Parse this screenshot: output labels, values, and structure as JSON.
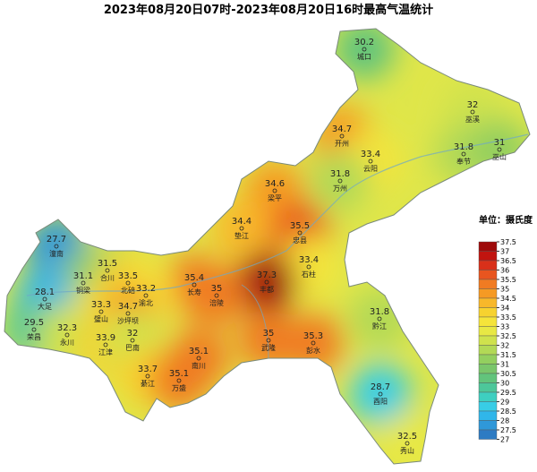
{
  "title": "2023年08月20日07时-2023年08月20日16时最高气温统计",
  "legend": {
    "title": "单位：摄氏度",
    "ticks": [
      37.5,
      37,
      36.5,
      36,
      35.5,
      35,
      34.5,
      34,
      33.5,
      33,
      32.5,
      32,
      31.5,
      31,
      30.5,
      30,
      29.5,
      29,
      28.5,
      28,
      27.5,
      27
    ],
    "colors": [
      "#9e0a0a",
      "#c1140f",
      "#d9301a",
      "#e8551f",
      "#f07b22",
      "#f59a24",
      "#f8b82a",
      "#f7d22f",
      "#f5e43a",
      "#e8e844",
      "#cfe24d",
      "#b2d956",
      "#93cf5f",
      "#7ac66b",
      "#62c47c",
      "#4dc79a",
      "#3ecfc0",
      "#38cde6",
      "#30b6ea",
      "#2f98d9",
      "#2e7bc3"
    ]
  },
  "stations": [
    {
      "name": "城口",
      "value": 30.2
    },
    {
      "name": "巫溪",
      "value": 32
    },
    {
      "name": "开州",
      "value": 34.7
    },
    {
      "name": "云阳",
      "value": 33.4
    },
    {
      "name": "奉节",
      "value": 31.8
    },
    {
      "name": "巫山",
      "value": 31
    },
    {
      "name": "万州",
      "value": 31.8
    },
    {
      "name": "梁平",
      "value": 34.6
    },
    {
      "name": "垫江",
      "value": 34.4
    },
    {
      "name": "忠县",
      "value": 35.5
    },
    {
      "name": "潼南",
      "value": 27.7
    },
    {
      "name": "合川",
      "value": 31.5
    },
    {
      "name": "铜梁",
      "value": 31.1
    },
    {
      "name": "北碚",
      "value": 33.5
    },
    {
      "name": "石柱",
      "value": 33.4
    },
    {
      "name": "长寿",
      "value": 35.4
    },
    {
      "name": "丰都",
      "value": 37.3
    },
    {
      "name": "大足",
      "value": 28.1
    },
    {
      "name": "渝北",
      "value": 33.2
    },
    {
      "name": "涪陵",
      "value": 35
    },
    {
      "name": "璧山",
      "value": 33.3
    },
    {
      "name": "沙坪坝",
      "value": 34.7
    },
    {
      "name": "黔江",
      "value": 31.8
    },
    {
      "name": "荣昌",
      "value": 29.5
    },
    {
      "name": "永川",
      "value": 32.3
    },
    {
      "name": "江津",
      "value": 33.9
    },
    {
      "name": "巴南",
      "value": 32
    },
    {
      "name": "武隆",
      "value": 35
    },
    {
      "name": "彭水",
      "value": 35.3
    },
    {
      "name": "南川",
      "value": 35.1
    },
    {
      "name": "綦江",
      "value": 33.7
    },
    {
      "name": "万盛",
      "value": 35.1
    },
    {
      "name": "酉阳",
      "value": 28.7
    },
    {
      "name": "秀山",
      "value": 32.5
    }
  ]
}
